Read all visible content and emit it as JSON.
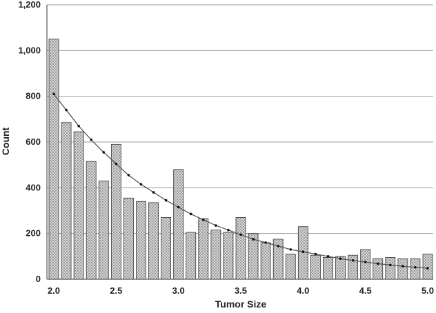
{
  "chart_data": {
    "type": "bar",
    "title": "",
    "xlabel": "Tumor Size",
    "ylabel": "Count",
    "ylim": [
      0,
      1200
    ],
    "xlim": [
      2.0,
      5.0
    ],
    "grid": true,
    "y_ticks": [
      0,
      200,
      400,
      600,
      800,
      1000,
      1200
    ],
    "y_tick_labels": [
      "0",
      "200",
      "400",
      "600",
      "800",
      "1,000",
      "1,200"
    ],
    "x_ticks": [
      2.0,
      2.5,
      3.0,
      3.5,
      4.0,
      4.5,
      5.0
    ],
    "x_tick_labels": [
      "2.0",
      "2.5",
      "3.0",
      "3.5",
      "4.0",
      "4.5",
      "5.0"
    ],
    "categories": [
      2.0,
      2.1,
      2.2,
      2.3,
      2.4,
      2.5,
      2.6,
      2.7,
      2.8,
      2.9,
      3.0,
      3.1,
      3.2,
      3.3,
      3.4,
      3.5,
      3.6,
      3.7,
      3.8,
      3.9,
      4.0,
      4.1,
      4.2,
      4.3,
      4.4,
      4.5,
      4.6,
      4.7,
      4.8,
      4.9,
      5.0
    ],
    "series": [
      {
        "type": "bar",
        "values": [
          1050,
          685,
          645,
          515,
          430,
          590,
          355,
          340,
          335,
          270,
          480,
          205,
          265,
          215,
          205,
          270,
          200,
          160,
          175,
          110,
          230,
          105,
          95,
          100,
          105,
          130,
          90,
          95,
          90,
          90,
          110
        ]
      },
      {
        "type": "line",
        "values": [
          810,
          740,
          670,
          610,
          555,
          505,
          455,
          415,
          380,
          345,
          315,
          285,
          260,
          235,
          215,
          195,
          175,
          160,
          145,
          130,
          120,
          110,
          100,
          90,
          82,
          75,
          68,
          62,
          57,
          52,
          48
        ]
      }
    ]
  }
}
